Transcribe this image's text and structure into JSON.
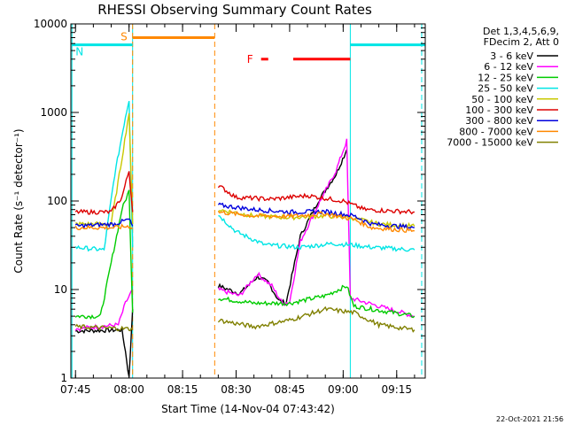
{
  "chart_data": {
    "type": "line",
    "title": "RHESSI Observing Summary Count Rates",
    "xlabel": "Start Time (14-Nov-04 07:43:42)",
    "ylabel": "Count Rate (s⁻¹ detector⁻¹)",
    "y_scale": "log",
    "ylim": [
      1,
      10000
    ],
    "y_ticks": [
      {
        "value": 1,
        "label": "1"
      },
      {
        "value": 10,
        "label": "10"
      },
      {
        "value": 100,
        "label": "100"
      },
      {
        "value": 1000,
        "label": "1000"
      },
      {
        "value": 10000,
        "label": "10000"
      }
    ],
    "xlim": [
      "07:43:42",
      "09:23:00"
    ],
    "x_ticks": [
      "07:45",
      "08:00",
      "08:15",
      "08:30",
      "08:45",
      "09:00",
      "09:15"
    ],
    "legend_header": [
      "Det 1,3,4,5,6,9,",
      "FDecim 2, Att 0"
    ],
    "legend_position": "right",
    "timestamp": "22-Oct-2021 21:56",
    "series": [
      {
        "name": "3 - 6 keV",
        "color": "#000000",
        "segments": [
          [
            [
              "07:45",
              3.4
            ],
            [
              "07:58",
              3.5
            ],
            [
              "07:59",
              2.0
            ],
            [
              "08:00",
              1.0
            ],
            [
              "08:01",
              6.0
            ]
          ],
          [
            [
              "08:25",
              11
            ],
            [
              "08:31",
              9
            ],
            [
              "08:36",
              14
            ],
            [
              "08:39",
              12
            ],
            [
              "08:42",
              7.5
            ],
            [
              "08:44",
              7
            ],
            [
              "08:48",
              40
            ],
            [
              "08:53",
              100
            ],
            [
              "08:58",
              200
            ],
            [
              "09:01",
              380
            ]
          ]
        ]
      },
      {
        "name": "6 - 12 keV",
        "color": "#ff00ff",
        "segments": [
          [
            [
              "07:45",
              3.6
            ],
            [
              "07:57",
              4.0
            ],
            [
              "07:59",
              7.0
            ],
            [
              "08:01",
              10.0
            ]
          ],
          [
            [
              "08:25",
              10
            ],
            [
              "08:31",
              8.5
            ],
            [
              "08:36",
              15
            ],
            [
              "08:40",
              11
            ],
            [
              "08:43",
              7.0
            ],
            [
              "08:45",
              7.2
            ],
            [
              "08:48",
              35
            ],
            [
              "08:53",
              90
            ],
            [
              "08:58",
              220
            ],
            [
              "09:01",
              480
            ],
            [
              "09:02",
              8
            ],
            [
              "09:20",
              5
            ]
          ]
        ]
      },
      {
        "name": "12 - 25 keV",
        "color": "#00cc00",
        "segments": [
          [
            [
              "07:45",
              5.0
            ],
            [
              "07:52",
              5.0
            ],
            [
              "07:55",
              20
            ],
            [
              "07:58",
              80
            ],
            [
              "08:00",
              130
            ],
            [
              "08:01",
              5.5
            ]
          ],
          [
            [
              "08:25",
              8.0
            ],
            [
              "08:35",
              7.0
            ],
            [
              "08:45",
              7.0
            ],
            [
              "08:55",
              8.5
            ],
            [
              "09:01",
              11
            ],
            [
              "09:03",
              6.5
            ],
            [
              "09:20",
              5.0
            ]
          ]
        ]
      },
      {
        "name": "25 - 50 keV",
        "color": "#00e5e5",
        "segments": [
          [
            [
              "07:45",
              30
            ],
            [
              "07:53",
              28
            ],
            [
              "07:56",
              200
            ],
            [
              "07:59",
              900
            ],
            [
              "08:00",
              1400
            ],
            [
              "08:01",
              30
            ]
          ],
          [
            [
              "08:25",
              70
            ],
            [
              "08:30",
              45
            ],
            [
              "08:38",
              32
            ],
            [
              "08:48",
              30
            ],
            [
              "08:57",
              33
            ],
            [
              "09:02",
              32
            ],
            [
              "09:08",
              30
            ],
            [
              "09:20",
              28
            ]
          ]
        ]
      },
      {
        "name": "50 - 100 keV",
        "color": "#c8c800",
        "segments": [
          [
            [
              "07:45",
              55
            ],
            [
              "07:55",
              55
            ],
            [
              "07:58",
              300
            ],
            [
              "08:00",
              1000
            ],
            [
              "08:01",
              55
            ]
          ],
          [
            [
              "08:25",
              80
            ],
            [
              "08:35",
              68
            ],
            [
              "08:45",
              65
            ],
            [
              "08:55",
              68
            ],
            [
              "09:02",
              65
            ],
            [
              "09:10",
              55
            ],
            [
              "09:20",
              52
            ]
          ]
        ]
      },
      {
        "name": "100 - 300 keV",
        "color": "#dd0000",
        "segments": [
          [
            [
              "07:45",
              75
            ],
            [
              "07:55",
              75
            ],
            [
              "07:58",
              110
            ],
            [
              "08:00",
              220
            ],
            [
              "08:01",
              75
            ]
          ],
          [
            [
              "08:25",
              150
            ],
            [
              "08:30",
              110
            ],
            [
              "08:40",
              105
            ],
            [
              "08:50",
              115
            ],
            [
              "09:00",
              100
            ],
            [
              "09:06",
              80
            ],
            [
              "09:20",
              75
            ]
          ]
        ]
      },
      {
        "name": "300 - 800 keV",
        "color": "#0000dd",
        "segments": [
          [
            [
              "07:45",
              52
            ],
            [
              "07:56",
              55
            ],
            [
              "08:00",
              62
            ],
            [
              "08:01",
              52
            ]
          ],
          [
            [
              "08:25",
              90
            ],
            [
              "08:35",
              80
            ],
            [
              "08:45",
              75
            ],
            [
              "08:55",
              76
            ],
            [
              "09:03",
              68
            ],
            [
              "09:08",
              55
            ],
            [
              "09:20",
              50
            ]
          ]
        ]
      },
      {
        "name": "800 - 7000 keV",
        "color": "#ff8800",
        "segments": [
          [
            [
              "07:45",
              50
            ],
            [
              "07:56",
              50
            ],
            [
              "08:00",
              52
            ],
            [
              "08:01",
              50
            ]
          ],
          [
            [
              "08:25",
              75
            ],
            [
              "08:35",
              68
            ],
            [
              "08:45",
              67
            ],
            [
              "08:55",
              72
            ],
            [
              "09:03",
              62
            ],
            [
              "09:08",
              50
            ],
            [
              "09:20",
              46
            ]
          ]
        ]
      },
      {
        "name": "7000 - 15000 keV",
        "color": "#808000",
        "segments": [
          [
            [
              "07:45",
              3.8
            ],
            [
              "08:00",
              3.6
            ],
            [
              "08:01",
              3.5
            ]
          ],
          [
            [
              "08:25",
              4.5
            ],
            [
              "08:35",
              3.8
            ],
            [
              "08:45",
              4.5
            ],
            [
              "08:55",
              6.0
            ],
            [
              "09:03",
              5.5
            ],
            [
              "09:10",
              4.0
            ],
            [
              "09:20",
              3.5
            ]
          ]
        ]
      }
    ],
    "flags": [
      {
        "label": "S",
        "color": "#ff8800",
        "value": 7000,
        "start": "08:01",
        "end": "08:24"
      },
      {
        "label": "N",
        "color": "#00e5e5",
        "value": 5800,
        "start": "07:44",
        "end": "08:01"
      },
      {
        "label": "",
        "color": "#00e5e5",
        "value": 5800,
        "start": "09:02",
        "end": "09:23"
      },
      {
        "label": "F",
        "color": "#ff0000",
        "value": 4000,
        "start": "08:37",
        "end": "08:39"
      },
      {
        "label": "",
        "color": "#ff0000",
        "value": 4000,
        "start": "08:46",
        "end": "09:02"
      }
    ],
    "markers": [
      {
        "time": "07:44",
        "color": "#00e5e5",
        "style": "solid"
      },
      {
        "time": "08:01",
        "color": "#00e5e5",
        "style": "solid"
      },
      {
        "time": "08:01",
        "color": "#ff8800",
        "style": "dashed"
      },
      {
        "time": "08:24",
        "color": "#ff8800",
        "style": "dashed"
      },
      {
        "time": "09:02",
        "color": "#00e5e5",
        "style": "solid"
      },
      {
        "time": "09:22",
        "color": "#00e5e5",
        "style": "dashed"
      }
    ]
  }
}
